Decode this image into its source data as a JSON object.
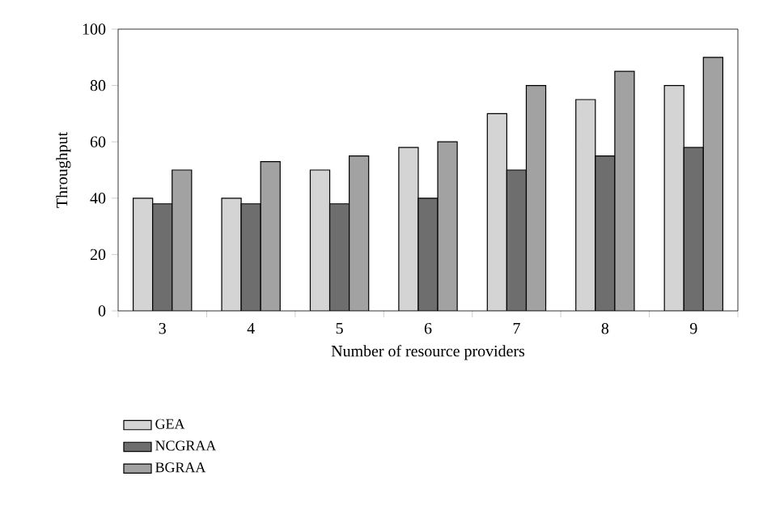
{
  "chart_data": {
    "type": "bar",
    "xlabel": "Number of resource providers",
    "ylabel": "Throughput",
    "categories": [
      "3",
      "4",
      "5",
      "6",
      "7",
      "8",
      "9"
    ],
    "series": [
      {
        "name": "GEA",
        "color": "#d4d4d4",
        "values": [
          40,
          40,
          50,
          58,
          70,
          75,
          80
        ]
      },
      {
        "name": "NCGRAA",
        "color": "#6e6e6e",
        "values": [
          38,
          38,
          38,
          40,
          50,
          55,
          58
        ]
      },
      {
        "name": "BGRAA",
        "color": "#a2a2a2",
        "values": [
          50,
          53,
          55,
          60,
          80,
          85,
          90
        ]
      }
    ],
    "ylim": [
      0,
      100
    ],
    "yticks": [
      0,
      20,
      40,
      60,
      80,
      100
    ],
    "legend": "bottom left"
  }
}
